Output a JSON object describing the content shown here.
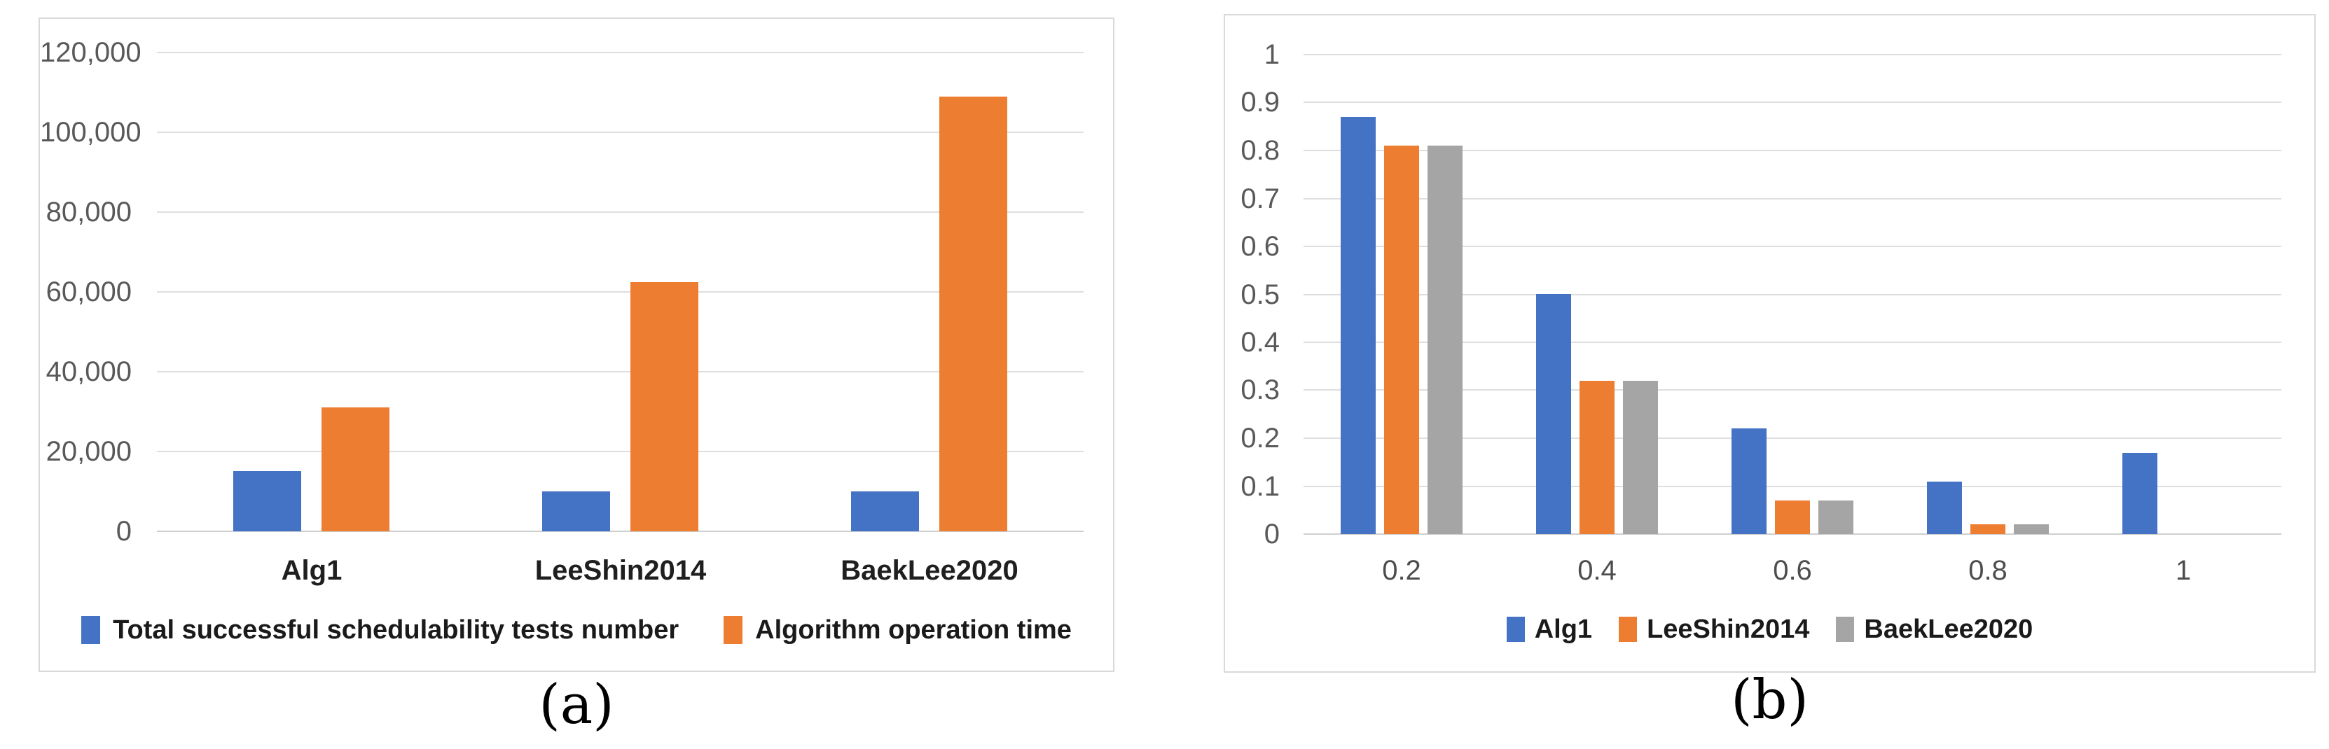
{
  "colors": {
    "series_blue": "#4472C4",
    "series_orange": "#ED7D31",
    "series_gray": "#A5A5A5",
    "gridline": "#DEDEDE",
    "axis_text": "#595959",
    "category_text": "#1F1F1F",
    "panel_border": "#D9D9D9"
  },
  "chart_data": [
    {
      "id": "chart-a",
      "type": "bar",
      "title": "",
      "xlabel": "",
      "ylabel": "",
      "caption": "(a)",
      "categories": [
        "Alg1",
        "LeeShin2014",
        "BaekLee2020"
      ],
      "series": [
        {
          "name": "Total successful schedulability tests number",
          "color": "#4472C4",
          "values": [
            15000,
            10000,
            10000
          ]
        },
        {
          "name": "Algorithm operation time",
          "color": "#ED7D31",
          "values": [
            31000,
            62500,
            109000
          ]
        }
      ],
      "ylim": [
        0,
        120000
      ],
      "yticks": [
        0,
        20000,
        40000,
        60000,
        80000,
        100000,
        120000
      ],
      "ytick_labels": [
        "0",
        "20,000",
        "40,000",
        "60,000",
        "80,000",
        "100,000",
        "120,000"
      ],
      "grid": true,
      "legend_position": "bottom"
    },
    {
      "id": "chart-b",
      "type": "bar",
      "title": "",
      "xlabel": "",
      "ylabel": "",
      "caption": "(b)",
      "categories": [
        "0.2",
        "0.4",
        "0.6",
        "0.8",
        "1"
      ],
      "series": [
        {
          "name": "Alg1",
          "color": "#4472C4",
          "values": [
            0.87,
            0.5,
            0.22,
            0.11,
            0.17
          ]
        },
        {
          "name": "LeeShin2014",
          "color": "#ED7D31",
          "values": [
            0.81,
            0.32,
            0.07,
            0.02,
            0
          ]
        },
        {
          "name": "BaekLee2020",
          "color": "#A5A5A5",
          "values": [
            0.81,
            0.32,
            0.07,
            0.02,
            0
          ]
        }
      ],
      "ylim": [
        0,
        1
      ],
      "yticks": [
        0,
        0.1,
        0.2,
        0.3,
        0.4,
        0.5,
        0.6,
        0.7,
        0.8,
        0.9,
        1
      ],
      "ytick_labels": [
        "0",
        "0.1",
        "0.2",
        "0.3",
        "0.4",
        "0.5",
        "0.6",
        "0.7",
        "0.8",
        "0.9",
        "1"
      ],
      "grid": true,
      "legend_position": "bottom"
    }
  ]
}
